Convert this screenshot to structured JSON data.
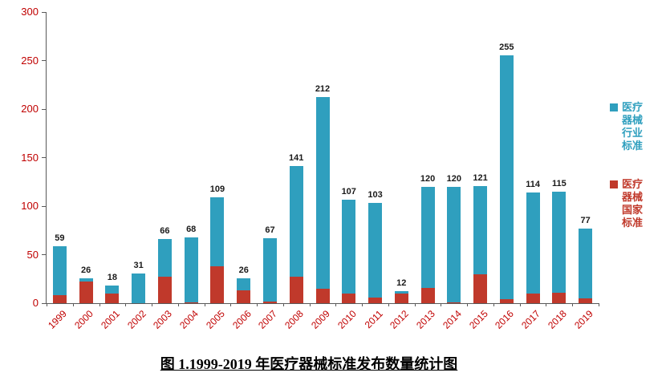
{
  "caption": "图 1.1999-2019 年医疗器械标准发布数量统计图",
  "chart_data": {
    "type": "bar",
    "stacked": true,
    "title": "图 1.1999-2019 年医疗器械标准发布数量统计图",
    "xlabel": "",
    "ylabel": "",
    "categories": [
      "1999",
      "2000",
      "2001",
      "2002",
      "2003",
      "2004",
      "2005",
      "2006",
      "2007",
      "2008",
      "2009",
      "2010",
      "2011",
      "2012",
      "2013",
      "2014",
      "2015",
      "2016",
      "2017",
      "2018",
      "2019"
    ],
    "series": [
      {
        "id": "national",
        "name": "医疗器械国家标准",
        "color": "#c0392b",
        "values": [
          8,
          22,
          10,
          0,
          27,
          1,
          38,
          13,
          2,
          27,
          15,
          10,
          6,
          10,
          16,
          1,
          30,
          4,
          10,
          11,
          5
        ]
      },
      {
        "id": "industry",
        "name": "医疗器械行业标准",
        "color": "#2f9fbe",
        "values": [
          51,
          4,
          8,
          31,
          39,
          67,
          71,
          13,
          65,
          114,
          197,
          97,
          97,
          2,
          104,
          119,
          91,
          251,
          104,
          104,
          72
        ]
      }
    ],
    "totals": [
      59,
      26,
      18,
      31,
      66,
      68,
      109,
      26,
      67,
      141,
      212,
      107,
      103,
      12,
      120,
      120,
      121,
      255,
      114,
      115,
      77
    ],
    "ylim": [
      0,
      300
    ],
    "yticks": [
      0,
      50,
      100,
      150,
      200,
      250,
      300
    ],
    "grid": false,
    "legend_position": "right",
    "legend": [
      {
        "id": "industry",
        "color": "#2f9fbe",
        "label": "医疗器械行业标准",
        "label_lines": [
          "医疗",
          "器械",
          "行业",
          "标准"
        ]
      },
      {
        "id": "national",
        "color": "#c0392b",
        "label": "医疗器械国家标准",
        "label_lines": [
          "医疗",
          "器械",
          "国家",
          "标准"
        ]
      }
    ],
    "axis_label_color": "#c00000"
  }
}
